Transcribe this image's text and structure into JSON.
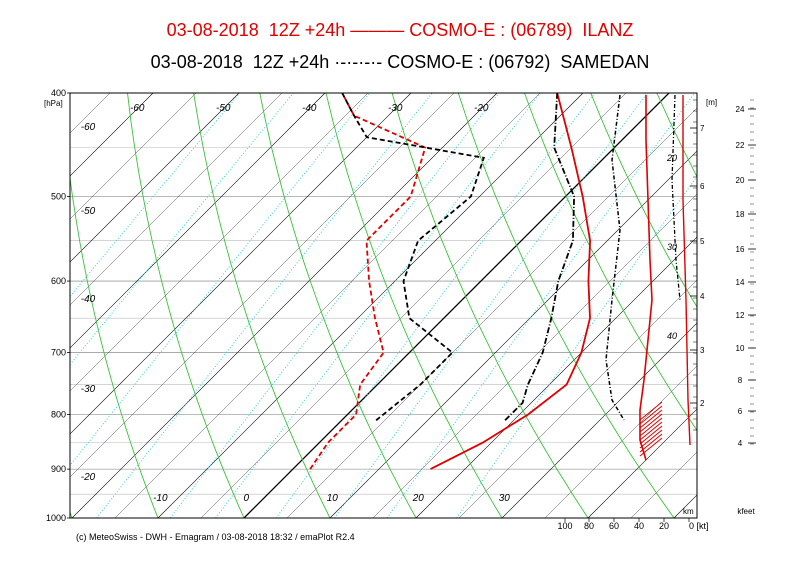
{
  "header": {
    "line1": "03-08-2018  12Z +24h ——— COSMO-E : (06789)  ILANZ",
    "line2": "03-08-2018  12Z +24h ·-·-·-·- COSMO-E : (06792)  SAMEDAN"
  },
  "footer": "(c) MeteoSwiss - DWH - Emagram / 03-08-2018  18:32 / emaPlot R2.4",
  "colors": {
    "ilanz": "#e00000",
    "samedan": "#000000",
    "dry_adiabat": "#3cc03c",
    "mixing_ratio": "#33ccdd",
    "isotherm": "#000000",
    "grid": "#999999"
  },
  "chart_data": {
    "type": "line",
    "diagram": "emagram (skew-T)",
    "pressure_ticks": [
      "400",
      "500",
      "600",
      "700",
      "800",
      "900",
      "1000"
    ],
    "pressure_unit_label": "[hPa]",
    "temperature_labels": [
      "-60",
      "-50",
      "-40",
      "-30",
      "-20",
      "-10",
      "0",
      "10",
      "20",
      "30"
    ],
    "isotherm_left_labels": [
      "-60",
      "-50",
      "-40",
      "-30",
      "-20"
    ],
    "height_m_label": "[m]",
    "height_km_ticks": [
      "2",
      "3",
      "4",
      "5",
      "6",
      "7"
    ],
    "height_kfeet_ticks": [
      "4",
      "6",
      "8",
      "10",
      "12",
      "14",
      "16",
      "18",
      "20",
      "22",
      "24"
    ],
    "wind_speed_ticks": [
      "100",
      "80",
      "60",
      "40",
      "20",
      "0 [kt]"
    ],
    "km_label": "km",
    "kfeet_label": "kfeet",
    "isotherm_inline_labels": [
      "20",
      "30",
      "40"
    ],
    "ylim_hpa": [
      1000,
      400
    ],
    "xlim_c": [
      -20,
      40
    ],
    "series": [
      {
        "name": "ILANZ",
        "temperature": [
          [
            900,
            16
          ],
          [
            850,
            19
          ],
          [
            800,
            21
          ],
          [
            750,
            22
          ],
          [
            700,
            20
          ],
          [
            650,
            17
          ],
          [
            600,
            12.5
          ],
          [
            550,
            8
          ],
          [
            500,
            2
          ],
          [
            450,
            -5
          ],
          [
            400,
            -13
          ]
        ],
        "dewpoint": [
          [
            900,
            2
          ],
          [
            850,
            1
          ],
          [
            800,
            1
          ],
          [
            750,
            -2
          ],
          [
            700,
            -3
          ],
          [
            650,
            -8
          ],
          [
            600,
            -13
          ],
          [
            550,
            -18
          ],
          [
            500,
            -18
          ],
          [
            450,
            -22
          ],
          [
            420,
            -34
          ],
          [
            400,
            -38
          ]
        ]
      },
      {
        "name": "SAMEDAN",
        "temperature": [
          [
            810,
            19
          ],
          [
            780,
            19
          ],
          [
            750,
            17.5
          ],
          [
            700,
            15.5
          ],
          [
            650,
            12.5
          ],
          [
            600,
            9
          ],
          [
            550,
            6
          ],
          [
            500,
            1
          ],
          [
            450,
            -7
          ],
          [
            400,
            -13
          ]
        ],
        "dewpoint": [
          [
            810,
            4
          ],
          [
            750,
            5
          ],
          [
            700,
            5
          ],
          [
            650,
            -4
          ],
          [
            600,
            -9
          ],
          [
            550,
            -12
          ],
          [
            500,
            -11
          ],
          [
            460,
            -14
          ],
          [
            440,
            -30
          ],
          [
            420,
            -34
          ],
          [
            400,
            -38
          ]
        ]
      }
    ]
  }
}
